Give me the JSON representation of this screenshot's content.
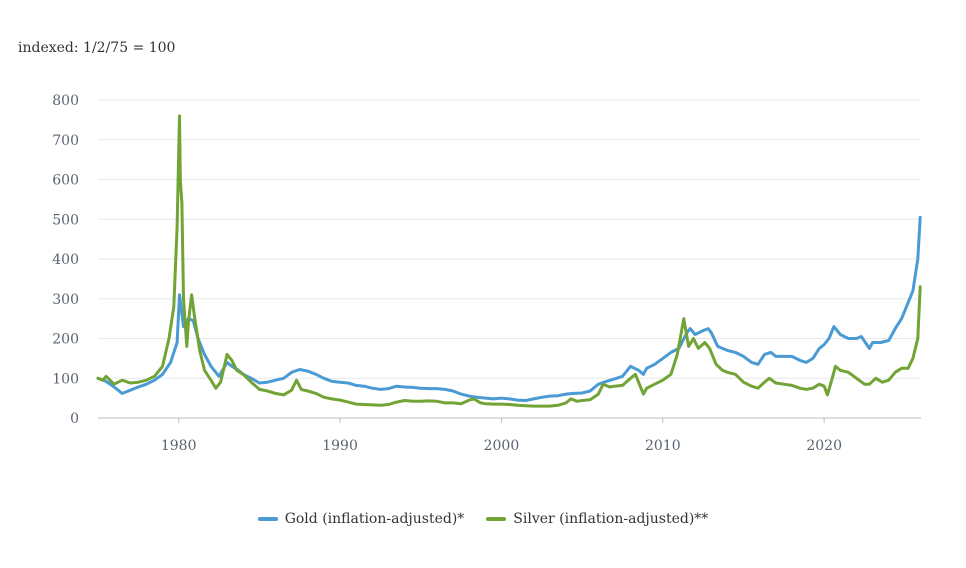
{
  "note": "indexed: 1/2/75 = 100",
  "chart_data": {
    "type": "line",
    "title": "",
    "xlabel": "",
    "ylabel": "",
    "xlim": [
      1975,
      2026
    ],
    "ylim": [
      0,
      800
    ],
    "yticks": [
      "0",
      "100",
      "200",
      "300",
      "400",
      "500",
      "600",
      "700",
      "800"
    ],
    "xticks": [
      "1980",
      "1990",
      "2000",
      "2010",
      "2020"
    ],
    "grid": true,
    "legend_position": "bottom",
    "series": [
      {
        "name": "Gold (inflation-adjusted)*",
        "color": "#4a9ad4",
        "points": [
          [
            1975.0,
            100
          ],
          [
            1975.5,
            92
          ],
          [
            1976.0,
            78
          ],
          [
            1976.5,
            62
          ],
          [
            1977.0,
            70
          ],
          [
            1977.5,
            78
          ],
          [
            1978.0,
            85
          ],
          [
            1978.5,
            95
          ],
          [
            1979.0,
            110
          ],
          [
            1979.5,
            140
          ],
          [
            1979.9,
            190
          ],
          [
            1980.05,
            310
          ],
          [
            1980.3,
            230
          ],
          [
            1980.6,
            250
          ],
          [
            1980.9,
            245
          ],
          [
            1981.2,
            200
          ],
          [
            1981.6,
            160
          ],
          [
            1982.0,
            130
          ],
          [
            1982.5,
            105
          ],
          [
            1983.0,
            140
          ],
          [
            1983.3,
            130
          ],
          [
            1983.7,
            120
          ],
          [
            1984.0,
            110
          ],
          [
            1984.5,
            100
          ],
          [
            1985.0,
            88
          ],
          [
            1985.5,
            90
          ],
          [
            1986.0,
            95
          ],
          [
            1986.5,
            100
          ],
          [
            1987.0,
            115
          ],
          [
            1987.5,
            122
          ],
          [
            1988.0,
            118
          ],
          [
            1988.5,
            110
          ],
          [
            1989.0,
            100
          ],
          [
            1989.5,
            92
          ],
          [
            1990.0,
            90
          ],
          [
            1990.5,
            88
          ],
          [
            1991.0,
            82
          ],
          [
            1991.5,
            80
          ],
          [
            1992.0,
            75
          ],
          [
            1992.5,
            72
          ],
          [
            1993.0,
            74
          ],
          [
            1993.5,
            80
          ],
          [
            1994.0,
            78
          ],
          [
            1994.5,
            77
          ],
          [
            1995.0,
            75
          ],
          [
            1995.5,
            74
          ],
          [
            1996.0,
            74
          ],
          [
            1996.5,
            72
          ],
          [
            1997.0,
            68
          ],
          [
            1997.5,
            60
          ],
          [
            1998.0,
            55
          ],
          [
            1998.5,
            52
          ],
          [
            1999.0,
            50
          ],
          [
            1999.5,
            48
          ],
          [
            2000.0,
            50
          ],
          [
            2000.5,
            48
          ],
          [
            2001.0,
            45
          ],
          [
            2001.5,
            44
          ],
          [
            2002.0,
            48
          ],
          [
            2002.5,
            52
          ],
          [
            2003.0,
            55
          ],
          [
            2003.5,
            56
          ],
          [
            2004.0,
            60
          ],
          [
            2004.5,
            62
          ],
          [
            2005.0,
            63
          ],
          [
            2005.5,
            68
          ],
          [
            2006.0,
            85
          ],
          [
            2006.5,
            92
          ],
          [
            2007.0,
            98
          ],
          [
            2007.5,
            105
          ],
          [
            2008.0,
            130
          ],
          [
            2008.5,
            120
          ],
          [
            2008.8,
            110
          ],
          [
            2009.0,
            125
          ],
          [
            2009.5,
            135
          ],
          [
            2010.0,
            150
          ],
          [
            2010.5,
            165
          ],
          [
            2011.0,
            175
          ],
          [
            2011.5,
            215
          ],
          [
            2011.7,
            225
          ],
          [
            2012.0,
            210
          ],
          [
            2012.5,
            220
          ],
          [
            2012.8,
            225
          ],
          [
            2013.0,
            215
          ],
          [
            2013.4,
            180
          ],
          [
            2013.7,
            175
          ],
          [
            2014.0,
            170
          ],
          [
            2014.5,
            165
          ],
          [
            2015.0,
            155
          ],
          [
            2015.5,
            140
          ],
          [
            2015.9,
            135
          ],
          [
            2016.3,
            160
          ],
          [
            2016.7,
            165
          ],
          [
            2017.0,
            155
          ],
          [
            2017.5,
            155
          ],
          [
            2018.0,
            155
          ],
          [
            2018.5,
            145
          ],
          [
            2018.9,
            140
          ],
          [
            2019.3,
            150
          ],
          [
            2019.7,
            175
          ],
          [
            2020.0,
            185
          ],
          [
            2020.3,
            200
          ],
          [
            2020.6,
            230
          ],
          [
            2021.0,
            210
          ],
          [
            2021.5,
            200
          ],
          [
            2022.0,
            200
          ],
          [
            2022.3,
            205
          ],
          [
            2022.8,
            175
          ],
          [
            2023.0,
            190
          ],
          [
            2023.5,
            190
          ],
          [
            2024.0,
            195
          ],
          [
            2024.4,
            225
          ],
          [
            2024.8,
            250
          ],
          [
            2025.2,
            290
          ],
          [
            2025.5,
            320
          ],
          [
            2025.8,
            400
          ],
          [
            2025.95,
            505
          ]
        ]
      },
      {
        "name": "Silver (inflation-adjusted)**",
        "color": "#72a335",
        "points": [
          [
            1975.0,
            100
          ],
          [
            1975.3,
            95
          ],
          [
            1975.5,
            105
          ],
          [
            1976.0,
            85
          ],
          [
            1976.5,
            95
          ],
          [
            1977.0,
            88
          ],
          [
            1977.5,
            90
          ],
          [
            1978.0,
            95
          ],
          [
            1978.5,
            105
          ],
          [
            1979.0,
            130
          ],
          [
            1979.4,
            200
          ],
          [
            1979.7,
            280
          ],
          [
            1979.9,
            480
          ],
          [
            1980.05,
            760
          ],
          [
            1980.1,
            600
          ],
          [
            1980.2,
            540
          ],
          [
            1980.3,
            300
          ],
          [
            1980.5,
            180
          ],
          [
            1980.6,
            240
          ],
          [
            1980.8,
            310
          ],
          [
            1981.0,
            250
          ],
          [
            1981.3,
            170
          ],
          [
            1981.6,
            120
          ],
          [
            1982.0,
            95
          ],
          [
            1982.3,
            75
          ],
          [
            1982.6,
            90
          ],
          [
            1983.0,
            160
          ],
          [
            1983.3,
            145
          ],
          [
            1983.6,
            120
          ],
          [
            1984.0,
            110
          ],
          [
            1984.5,
            90
          ],
          [
            1985.0,
            72
          ],
          [
            1985.5,
            68
          ],
          [
            1986.0,
            62
          ],
          [
            1986.5,
            58
          ],
          [
            1987.0,
            70
          ],
          [
            1987.3,
            95
          ],
          [
            1987.6,
            72
          ],
          [
            1988.0,
            68
          ],
          [
            1988.5,
            62
          ],
          [
            1989.0,
            52
          ],
          [
            1989.5,
            48
          ],
          [
            1990.0,
            45
          ],
          [
            1990.5,
            40
          ],
          [
            1991.0,
            35
          ],
          [
            1991.5,
            34
          ],
          [
            1992.0,
            33
          ],
          [
            1992.5,
            32
          ],
          [
            1993.0,
            34
          ],
          [
            1993.5,
            40
          ],
          [
            1994.0,
            44
          ],
          [
            1994.5,
            42
          ],
          [
            1995.0,
            42
          ],
          [
            1995.5,
            43
          ],
          [
            1996.0,
            42
          ],
          [
            1996.5,
            38
          ],
          [
            1997.0,
            38
          ],
          [
            1997.5,
            36
          ],
          [
            1998.0,
            45
          ],
          [
            1998.3,
            48
          ],
          [
            1998.7,
            38
          ],
          [
            1999.0,
            36
          ],
          [
            1999.5,
            35
          ],
          [
            2000.0,
            35
          ],
          [
            2000.5,
            34
          ],
          [
            2001.0,
            32
          ],
          [
            2001.5,
            31
          ],
          [
            2002.0,
            30
          ],
          [
            2002.5,
            30
          ],
          [
            2003.0,
            30
          ],
          [
            2003.5,
            32
          ],
          [
            2004.0,
            38
          ],
          [
            2004.3,
            48
          ],
          [
            2004.7,
            42
          ],
          [
            2005.0,
            44
          ],
          [
            2005.5,
            46
          ],
          [
            2006.0,
            60
          ],
          [
            2006.3,
            85
          ],
          [
            2006.7,
            78
          ],
          [
            2007.0,
            80
          ],
          [
            2007.5,
            82
          ],
          [
            2008.0,
            100
          ],
          [
            2008.3,
            110
          ],
          [
            2008.8,
            60
          ],
          [
            2009.0,
            75
          ],
          [
            2009.5,
            85
          ],
          [
            2010.0,
            95
          ],
          [
            2010.5,
            110
          ],
          [
            2010.9,
            160
          ],
          [
            2011.3,
            250
          ],
          [
            2011.6,
            180
          ],
          [
            2011.9,
            200
          ],
          [
            2012.2,
            175
          ],
          [
            2012.6,
            190
          ],
          [
            2012.9,
            175
          ],
          [
            2013.3,
            135
          ],
          [
            2013.7,
            120
          ],
          [
            2014.0,
            115
          ],
          [
            2014.5,
            110
          ],
          [
            2015.0,
            90
          ],
          [
            2015.5,
            80
          ],
          [
            2015.9,
            75
          ],
          [
            2016.3,
            90
          ],
          [
            2016.6,
            100
          ],
          [
            2017.0,
            88
          ],
          [
            2017.5,
            85
          ],
          [
            2018.0,
            82
          ],
          [
            2018.5,
            75
          ],
          [
            2018.9,
            72
          ],
          [
            2019.3,
            75
          ],
          [
            2019.7,
            85
          ],
          [
            2020.0,
            80
          ],
          [
            2020.2,
            58
          ],
          [
            2020.5,
            100
          ],
          [
            2020.7,
            130
          ],
          [
            2021.0,
            120
          ],
          [
            2021.5,
            115
          ],
          [
            2022.0,
            100
          ],
          [
            2022.5,
            85
          ],
          [
            2022.8,
            85
          ],
          [
            2023.2,
            100
          ],
          [
            2023.6,
            90
          ],
          [
            2024.0,
            95
          ],
          [
            2024.4,
            115
          ],
          [
            2024.8,
            125
          ],
          [
            2025.2,
            125
          ],
          [
            2025.5,
            150
          ],
          [
            2025.8,
            200
          ],
          [
            2025.95,
            330
          ]
        ]
      }
    ]
  }
}
